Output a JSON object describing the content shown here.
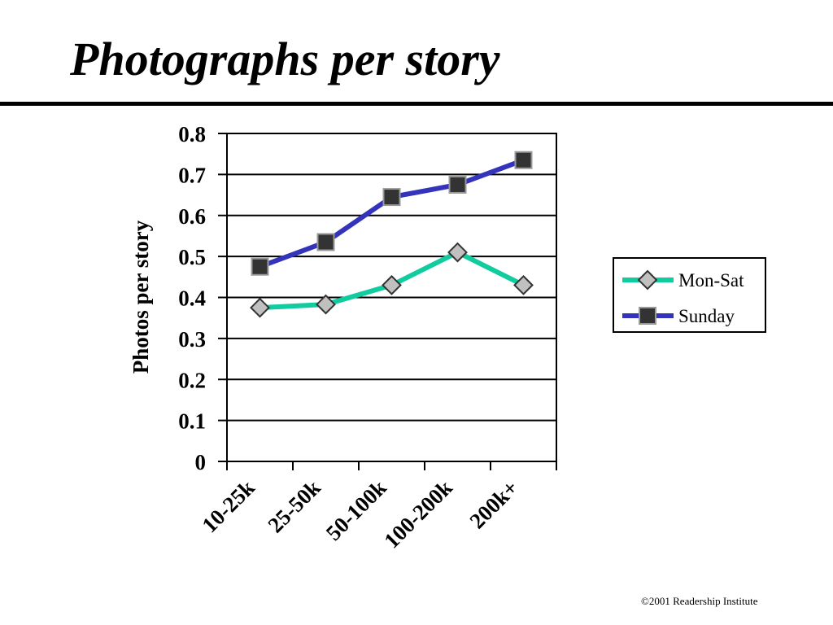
{
  "slide": {
    "title": "Photographs per story",
    "footer": "©2001 Readership Institute"
  },
  "chart_data": {
    "type": "line",
    "title": "",
    "xlabel": "",
    "ylabel": "Photos per story",
    "categories": [
      "10-25k",
      "25-50k",
      "50-100k",
      "100-200k",
      "200k+"
    ],
    "ylim": [
      0,
      0.8
    ],
    "yticks": [
      "0",
      "0.1",
      "0.2",
      "0.3",
      "0.4",
      "0.5",
      "0.6",
      "0.7",
      "0.8"
    ],
    "grid": true,
    "legend_position": "right",
    "series": [
      {
        "name": "Mon-Sat",
        "values": [
          0.375,
          0.383,
          0.43,
          0.51,
          0.43
        ],
        "line_color": "#10CC9E",
        "marker": "diamond",
        "marker_color": "#C0C0C0"
      },
      {
        "name": "Sunday",
        "values": [
          0.475,
          0.535,
          0.645,
          0.675,
          0.735
        ],
        "line_color": "#3333BB",
        "marker": "square",
        "marker_color": "#333333"
      }
    ]
  }
}
